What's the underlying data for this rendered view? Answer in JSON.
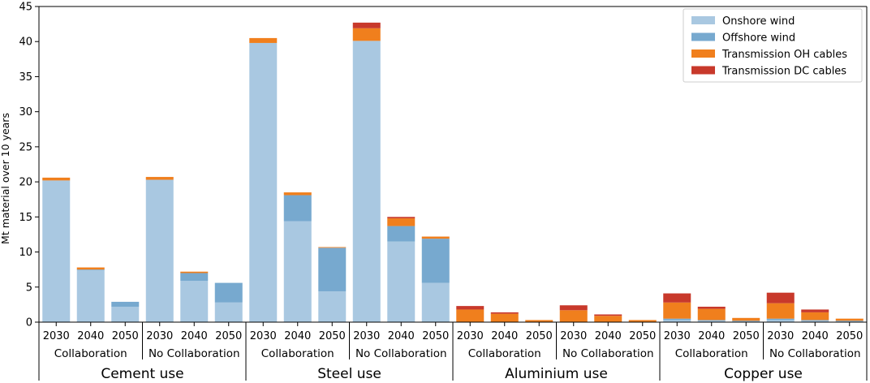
{
  "chart_data": {
    "type": "bar",
    "stacked": true,
    "ylabel": "Mt material over 10 years",
    "ylim": [
      0,
      45
    ],
    "yticks": [
      0,
      5,
      10,
      15,
      20,
      25,
      30,
      35,
      40,
      45
    ],
    "grid": false,
    "legend": "top-right",
    "series": [
      {
        "name": "Onshore wind",
        "color": "#a9c8e1"
      },
      {
        "name": "Offshore wind",
        "color": "#77a9cf"
      },
      {
        "name": "Transmission OH cables",
        "color": "#f07f1d"
      },
      {
        "name": "Transmission DC cables",
        "color": "#c8392b"
      }
    ],
    "materials": [
      {
        "label": "Cement use",
        "groups": [
          {
            "label": "Collaboration",
            "bars": [
              {
                "year": "2030",
                "values": [
                  20.2,
                  0.0,
                  0.4,
                  0.0
                ]
              },
              {
                "year": "2040",
                "values": [
                  7.4,
                  0.1,
                  0.3,
                  0.0
                ]
              },
              {
                "year": "2050",
                "values": [
                  2.2,
                  0.7,
                  0.0,
                  0.0
                ]
              }
            ]
          },
          {
            "label": "No Collaboration",
            "bars": [
              {
                "year": "2030",
                "values": [
                  20.3,
                  0.0,
                  0.4,
                  0.0
                ]
              },
              {
                "year": "2040",
                "values": [
                  5.9,
                  1.1,
                  0.2,
                  0.0
                ]
              },
              {
                "year": "2050",
                "values": [
                  2.8,
                  2.8,
                  0.0,
                  0.0
                ]
              }
            ]
          }
        ]
      },
      {
        "label": "Steel use",
        "groups": [
          {
            "label": "Collaboration",
            "bars": [
              {
                "year": "2030",
                "values": [
                  39.8,
                  0.0,
                  0.7,
                  0.0
                ]
              },
              {
                "year": "2040",
                "values": [
                  14.4,
                  3.7,
                  0.4,
                  0.0
                ]
              },
              {
                "year": "2050",
                "values": [
                  4.4,
                  6.2,
                  0.1,
                  0.0
                ]
              }
            ]
          },
          {
            "label": "No Collaboration",
            "bars": [
              {
                "year": "2030",
                "values": [
                  40.1,
                  0.0,
                  1.8,
                  0.8
                ]
              },
              {
                "year": "2040",
                "values": [
                  11.5,
                  2.2,
                  1.1,
                  0.2
                ]
              },
              {
                "year": "2050",
                "values": [
                  5.6,
                  6.3,
                  0.3,
                  0.0
                ]
              }
            ]
          }
        ]
      },
      {
        "label": "Aluminium use",
        "groups": [
          {
            "label": "Collaboration",
            "bars": [
              {
                "year": "2030",
                "values": [
                  0.0,
                  0.0,
                  1.8,
                  0.5
                ]
              },
              {
                "year": "2040",
                "values": [
                  0.0,
                  0.0,
                  1.2,
                  0.2
                ]
              },
              {
                "year": "2050",
                "values": [
                  0.0,
                  0.0,
                  0.3,
                  0.0
                ]
              }
            ]
          },
          {
            "label": "No Collaboration",
            "bars": [
              {
                "year": "2030",
                "values": [
                  0.0,
                  0.0,
                  1.7,
                  0.7
                ]
              },
              {
                "year": "2040",
                "values": [
                  0.0,
                  0.0,
                  0.9,
                  0.2
                ]
              },
              {
                "year": "2050",
                "values": [
                  0.0,
                  0.0,
                  0.3,
                  0.0
                ]
              }
            ]
          }
        ]
      },
      {
        "label": "Copper use",
        "groups": [
          {
            "label": "Collaboration",
            "bars": [
              {
                "year": "2030",
                "values": [
                  0.3,
                  0.2,
                  2.3,
                  1.3
                ]
              },
              {
                "year": "2040",
                "values": [
                  0.2,
                  0.1,
                  1.6,
                  0.3
                ]
              },
              {
                "year": "2050",
                "values": [
                  0.1,
                  0.1,
                  0.4,
                  0.0
                ]
              }
            ]
          },
          {
            "label": "No Collaboration",
            "bars": [
              {
                "year": "2030",
                "values": [
                  0.3,
                  0.2,
                  2.2,
                  1.5
                ]
              },
              {
                "year": "2040",
                "values": [
                  0.2,
                  0.1,
                  1.1,
                  0.4
                ]
              },
              {
                "year": "2050",
                "values": [
                  0.1,
                  0.1,
                  0.3,
                  0.0
                ]
              }
            ]
          }
        ]
      }
    ]
  }
}
